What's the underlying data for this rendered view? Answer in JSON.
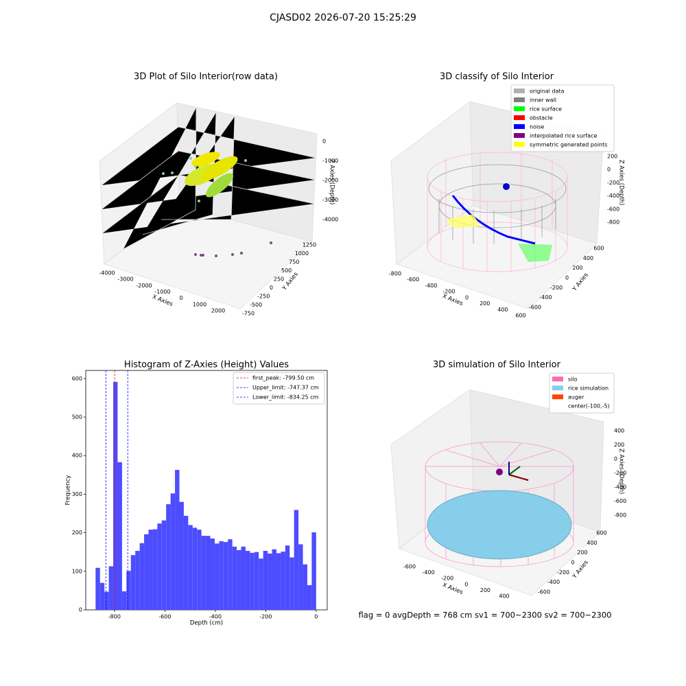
{
  "title": "CJASD02 2026-07-20 15:25:29",
  "footer": "flag = 0     avgDepth = 768 cm  sv1 = 700~2300  sv2 = 700~2300",
  "chart_data": [
    {
      "type": "scatter3d",
      "title": "3D Plot of Silo Interior(row data)",
      "xlabel": "X Axies",
      "ylabel": "Y Axies",
      "zlabel": "Z Axies (Depth)",
      "xticks": [
        -4000,
        -3000,
        -2000,
        -1000,
        0,
        1000,
        2000
      ],
      "yticks": [
        -750,
        -500,
        -250,
        0,
        250,
        500,
        750,
        1000,
        1250
      ],
      "zticks": [
        0,
        -1000,
        -2000,
        -3000,
        -4000
      ]
    },
    {
      "type": "scatter3d",
      "title": "3D classify of Silo Interior",
      "xlabel": "X Axies",
      "ylabel": "Y Axies",
      "zlabel": "Z Axies (Depth)",
      "xticks": [
        -800,
        -600,
        -400,
        -200,
        0,
        200,
        400,
        600
      ],
      "yticks": [
        -600,
        -400,
        -200,
        0,
        200,
        400,
        600
      ],
      "zticks": [
        200,
        0,
        -200,
        -400,
        -600,
        -800
      ],
      "legend": [
        {
          "name": "original data",
          "color": "#b0b0b0"
        },
        {
          "name": "inner wall",
          "color": "#808080"
        },
        {
          "name": "rice surface",
          "color": "#00ff00"
        },
        {
          "name": "obstacle",
          "color": "#ff0000"
        },
        {
          "name": "noise",
          "color": "#0000ff"
        },
        {
          "name": "interpolated rice surface",
          "color": "#800080"
        },
        {
          "name": "symmetric generated points",
          "color": "#ffff00"
        }
      ]
    },
    {
      "type": "histogram",
      "title": "Histogram of Z-Axies (Height) Values",
      "xlabel": "Depth (cm)",
      "ylabel": "Frequency",
      "color": "#4d4dff",
      "bins": [
        -875,
        -857.5,
        -840,
        -822.5,
        -805,
        -787.5,
        -770,
        -752.5,
        -735,
        -717.5,
        -700,
        -682.5,
        -665,
        -647.5,
        -630,
        -612.5,
        -595,
        -577.5,
        -560,
        -542.5,
        -525,
        -507.5,
        -490,
        -472.5,
        -455,
        -437.5,
        -420,
        -402.5,
        -385,
        -367.5,
        -350,
        -332.5,
        -315,
        -297.5,
        -280,
        -262.5,
        -245,
        -227.5,
        -210,
        -192.5,
        -175,
        -157.5,
        -140,
        -122.5,
        -105,
        -87.5,
        -70,
        -52.5,
        -35,
        -17.5,
        0
      ],
      "values": [
        109,
        70,
        47,
        113,
        591,
        383,
        48,
        101,
        142,
        153,
        173,
        196,
        208,
        209,
        224,
        232,
        274,
        302,
        363,
        280,
        244,
        220,
        213,
        208,
        192,
        192,
        185,
        172,
        178,
        176,
        183,
        164,
        155,
        164,
        153,
        148,
        150,
        133,
        153,
        146,
        157,
        147,
        151,
        167,
        136,
        259,
        170,
        118,
        64,
        201
      ],
      "xlim": [
        -914,
        44
      ],
      "ylim": [
        0,
        621
      ],
      "xticks": [
        -800,
        -600,
        -400,
        -200,
        0
      ],
      "yticks": [
        0,
        100,
        200,
        300,
        400,
        500,
        600
      ],
      "vlines": [
        {
          "label": "first_peak: -799.50 cm",
          "value": -799.5,
          "color": "#ff0000"
        },
        {
          "label": "Upper_limit: -747.37 cm",
          "value": -747.37,
          "color": "#0000ff"
        },
        {
          "label": "Lower_limit: -834.25 cm",
          "value": -834.25,
          "color": "#0000ff"
        }
      ]
    },
    {
      "type": "surface3d",
      "title": "3D simulation of Silo Interior",
      "xlabel": "X Axies",
      "ylabel": "Y Axies",
      "zlabel": "Z Axies (Depth)",
      "xticks": [
        -600,
        -400,
        -200,
        0,
        200,
        400
      ],
      "yticks": [
        -600,
        -400,
        -200,
        0,
        200,
        400,
        600
      ],
      "zticks": [
        400,
        200,
        0,
        -200,
        -400,
        -600,
        -800
      ],
      "legend": [
        {
          "name": "silo",
          "color": "#ff69b4"
        },
        {
          "name": "rice simulation",
          "color": "#87ceeb"
        },
        {
          "name": "auger",
          "color": "#ff4500"
        },
        {
          "name": "center(-100,-5)",
          "color": null
        }
      ]
    }
  ]
}
